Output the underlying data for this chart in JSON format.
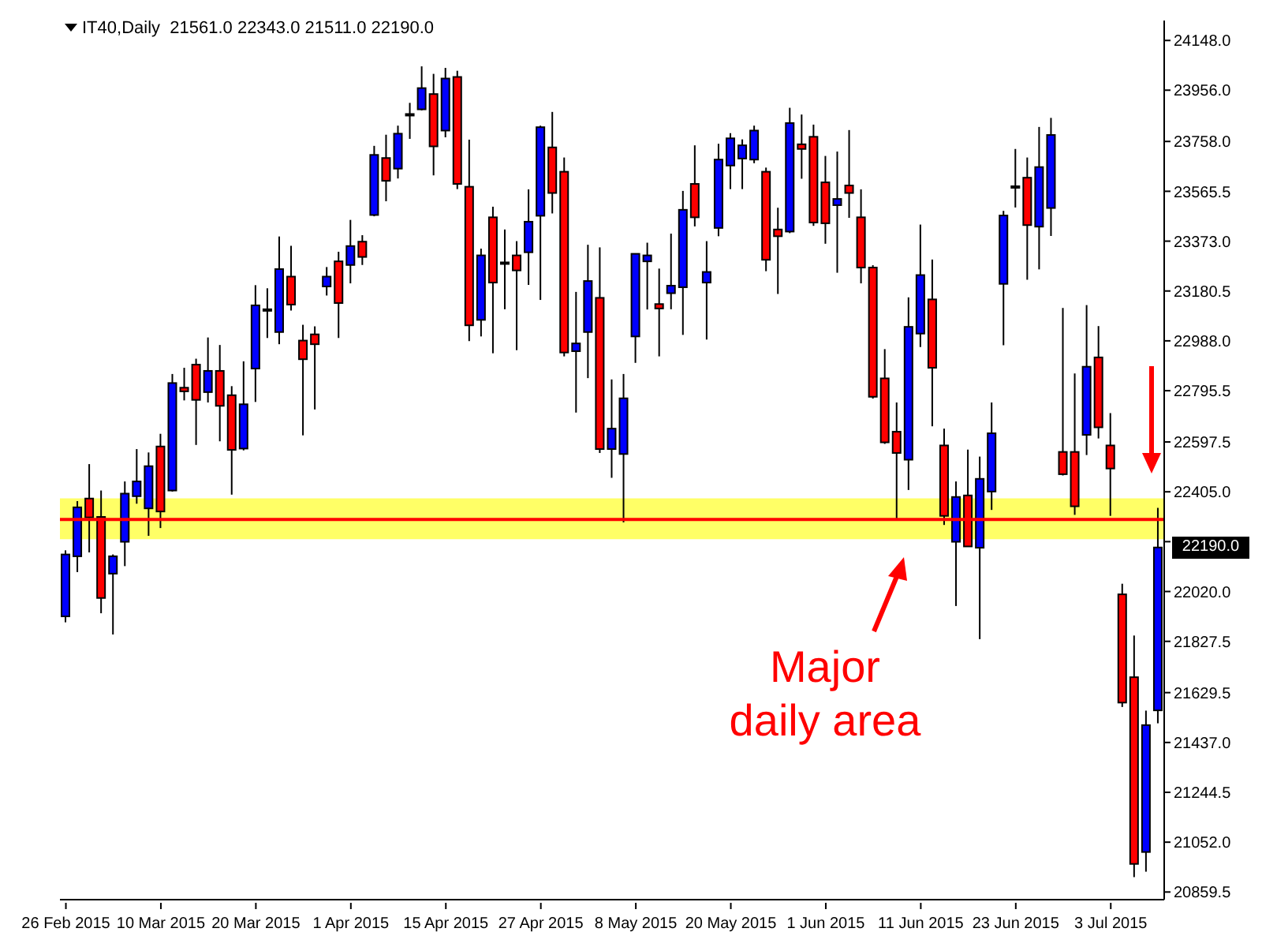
{
  "chart_data": {
    "type": "candlestick",
    "title": "IT40,Daily  21561.0 22343.0 21511.0 22190.0",
    "categories": [
      "26 Feb 2015",
      null,
      null,
      null,
      null,
      null,
      null,
      null,
      "10 Mar 2015",
      null,
      null,
      null,
      null,
      null,
      null,
      null,
      "20 Mar 2015",
      null,
      null,
      null,
      null,
      null,
      null,
      null,
      "1 Apr 2015",
      null,
      null,
      null,
      null,
      null,
      null,
      null,
      "15 Apr 2015",
      null,
      null,
      null,
      null,
      null,
      null,
      null,
      "27 Apr 2015",
      null,
      null,
      null,
      null,
      null,
      null,
      null,
      "8 May 2015",
      null,
      null,
      null,
      null,
      null,
      null,
      null,
      "20 May 2015",
      null,
      null,
      null,
      null,
      null,
      null,
      null,
      "1 Jun 2015",
      null,
      null,
      null,
      null,
      null,
      null,
      null,
      "11 Jun 2015",
      null,
      null,
      null,
      null,
      null,
      null,
      null,
      "23 Jun 2015",
      null,
      null,
      null,
      null,
      null,
      null,
      null,
      "3 Jul 2015",
      null,
      null,
      null,
      null
    ],
    "ohlc": [
      [
        21924,
        22179,
        21901,
        22163
      ],
      [
        22156,
        22369,
        22095,
        22345
      ],
      [
        22379,
        22512,
        22171,
        22306
      ],
      [
        22308,
        22410,
        21936,
        21995
      ],
      [
        22089,
        22163,
        21854,
        22156
      ],
      [
        22212,
        22445,
        22118,
        22398
      ],
      [
        22388,
        22570,
        22359,
        22445
      ],
      [
        22341,
        22557,
        22235,
        22504
      ],
      [
        22580,
        22629,
        22265,
        22329
      ],
      [
        22410,
        22860,
        22406,
        22825
      ],
      [
        22807,
        22884,
        22758,
        22793
      ],
      [
        22896,
        22919,
        22586,
        22760
      ],
      [
        22790,
        23001,
        22750,
        22872
      ],
      [
        22872,
        22972,
        22600,
        22737
      ],
      [
        22778,
        22813,
        22394,
        22567
      ],
      [
        22572,
        22909,
        22565,
        22743
      ],
      [
        22881,
        23203,
        22752,
        23125
      ],
      [
        23110,
        23191,
        22999,
        23110
      ],
      [
        23022,
        23391,
        22975,
        23265
      ],
      [
        23236,
        23355,
        23105,
        23128
      ],
      [
        22989,
        23050,
        22623,
        22917
      ],
      [
        23013,
        23044,
        22723,
        22975
      ],
      [
        23198,
        23273,
        23163,
        23236
      ],
      [
        23295,
        23332,
        22999,
        23134
      ],
      [
        23281,
        23455,
        23210,
        23354
      ],
      [
        23371,
        23396,
        23281,
        23312
      ],
      [
        23474,
        23741,
        23469,
        23706
      ],
      [
        23694,
        23784,
        23527,
        23606
      ],
      [
        23653,
        23819,
        23615,
        23788
      ],
      [
        23864,
        23907,
        23768,
        23864
      ],
      [
        23882,
        24048,
        23878,
        23964
      ],
      [
        23941,
        24019,
        23627,
        23739
      ],
      [
        23800,
        24042,
        23774,
        24001
      ],
      [
        24007,
        24031,
        23574,
        23594
      ],
      [
        23583,
        23765,
        22987,
        23048
      ],
      [
        23069,
        23344,
        23005,
        23318
      ],
      [
        23465,
        23506,
        22940,
        23213
      ],
      [
        23291,
        23418,
        23110,
        23291
      ],
      [
        23318,
        23373,
        22952,
        23260
      ],
      [
        23330,
        23573,
        23204,
        23448
      ],
      [
        23471,
        23819,
        23146,
        23813
      ],
      [
        23735,
        23872,
        23480,
        23559
      ],
      [
        23641,
        23696,
        22928,
        22943
      ],
      [
        22948,
        23177,
        22711,
        22978
      ],
      [
        23022,
        23359,
        22844,
        23219
      ],
      [
        23154,
        23349,
        22555,
        22570
      ],
      [
        22570,
        22839,
        22459,
        22649
      ],
      [
        22551,
        22860,
        22287,
        22766
      ],
      [
        23005,
        23326,
        22903,
        23324
      ],
      [
        23295,
        23367,
        23109,
        23318
      ],
      [
        23130,
        23267,
        22928,
        23113
      ],
      [
        23172,
        23402,
        23110,
        23201
      ],
      [
        23195,
        23567,
        23011,
        23494
      ],
      [
        23594,
        23743,
        23430,
        23465
      ],
      [
        23213,
        23373,
        22993,
        23254
      ],
      [
        23424,
        23749,
        23392,
        23688
      ],
      [
        23665,
        23790,
        23574,
        23770
      ],
      [
        23692,
        23766,
        23574,
        23743
      ],
      [
        23688,
        23819,
        23674,
        23800
      ],
      [
        23641,
        23657,
        23257,
        23301
      ],
      [
        23418,
        23502,
        23169,
        23392
      ],
      [
        23410,
        23888,
        23404,
        23829
      ],
      [
        23747,
        23862,
        23614,
        23729
      ],
      [
        23776,
        23823,
        23432,
        23445
      ],
      [
        23600,
        23702,
        23363,
        23442
      ],
      [
        23512,
        23719,
        23251,
        23536
      ],
      [
        23588,
        23802,
        23463,
        23559
      ],
      [
        23465,
        23573,
        23210,
        23271
      ],
      [
        23271,
        23280,
        22765,
        22772
      ],
      [
        22843,
        22956,
        22590,
        22596
      ],
      [
        22637,
        22750,
        22300,
        22555
      ],
      [
        22529,
        23156,
        22412,
        23042
      ],
      [
        23016,
        23437,
        22964,
        23242
      ],
      [
        23148,
        23302,
        22658,
        22884
      ],
      [
        22584,
        22649,
        22277,
        22312
      ],
      [
        22212,
        22445,
        21964,
        22385
      ],
      [
        22391,
        22568,
        22193,
        22194
      ],
      [
        22189,
        22541,
        21836,
        22455
      ],
      [
        22406,
        22750,
        22335,
        22631
      ],
      [
        23208,
        23490,
        22971,
        23472
      ],
      [
        23585,
        23729,
        23503,
        23585
      ],
      [
        23618,
        23696,
        23224,
        23435
      ],
      [
        23429,
        23814,
        23264,
        23659
      ],
      [
        23501,
        23849,
        23393,
        23783
      ],
      [
        22559,
        23115,
        22468,
        22473
      ],
      [
        22559,
        22862,
        22316,
        22349
      ],
      [
        22625,
        23126,
        22547,
        22888
      ],
      [
        22924,
        23045,
        22611,
        22654
      ],
      [
        22584,
        22709,
        22312,
        22495
      ],
      [
        22009,
        22050,
        21574,
        21591
      ],
      [
        21689,
        21850,
        20917,
        20968
      ],
      [
        21014,
        21560,
        20938,
        21504
      ],
      [
        21561,
        22343,
        21511,
        22190
      ]
    ],
    "colors": [
      "#0000ff",
      "#0000ff",
      "#ff0000",
      "#ff0000",
      "#0000ff",
      "#0000ff",
      "#0000ff",
      "#0000ff",
      "#ff0000",
      "#0000ff",
      "#ff0000",
      "#ff0000",
      "#0000ff",
      "#ff0000",
      "#ff0000",
      "#0000ff",
      "#0000ff",
      "#000000",
      "#0000ff",
      "#ff0000",
      "#ff0000",
      "#ff0000",
      "#0000ff",
      "#ff0000",
      "#0000ff",
      "#ff0000",
      "#0000ff",
      "#ff0000",
      "#0000ff",
      "#000000",
      "#0000ff",
      "#ff0000",
      "#0000ff",
      "#ff0000",
      "#ff0000",
      "#0000ff",
      "#ff0000",
      "#000000",
      "#ff0000",
      "#0000ff",
      "#0000ff",
      "#ff0000",
      "#ff0000",
      "#0000ff",
      "#0000ff",
      "#ff0000",
      "#0000ff",
      "#0000ff",
      "#0000ff",
      "#0000ff",
      "#ff0000",
      "#0000ff",
      "#0000ff",
      "#ff0000",
      "#0000ff",
      "#0000ff",
      "#0000ff",
      "#0000ff",
      "#0000ff",
      "#ff0000",
      "#ff0000",
      "#0000ff",
      "#ff0000",
      "#ff0000",
      "#ff0000",
      "#0000ff",
      "#ff0000",
      "#ff0000",
      "#ff0000",
      "#ff0000",
      "#ff0000",
      "#0000ff",
      "#0000ff",
      "#ff0000",
      "#ff0000",
      "#0000ff",
      "#ff0000",
      "#0000ff",
      "#0000ff",
      "#0000ff",
      "#000000",
      "#ff0000",
      "#0000ff",
      "#0000ff",
      "#ff0000",
      "#ff0000",
      "#0000ff",
      "#ff0000",
      "#ff0000",
      "#ff0000",
      "#ff0000",
      "#0000ff",
      "#0000ff"
    ],
    "ylim": [
      20830,
      24225
    ],
    "yticks": [
      {
        "value": 20859.5,
        "label": "20859.5"
      },
      {
        "value": 21052,
        "label": "21052.0"
      },
      {
        "value": 21244.5,
        "label": "21244.5"
      },
      {
        "value": 21437,
        "label": "21437.0"
      },
      {
        "value": 21629.5,
        "label": "21629.5"
      },
      {
        "value": 21827.5,
        "label": "21827.5"
      },
      {
        "value": 22020,
        "label": "22020.0"
      },
      {
        "value": 22212.5,
        "label": null
      },
      {
        "value": 22405,
        "label": "22405.0"
      },
      {
        "value": 22597.5,
        "label": "22597.5"
      },
      {
        "value": 22795.5,
        "label": "22795.5"
      },
      {
        "value": 22988,
        "label": "22988.0"
      },
      {
        "value": 23180.5,
        "label": "23180.5"
      },
      {
        "value": 23373,
        "label": "23373.0"
      },
      {
        "value": 23565.5,
        "label": "23565.5"
      },
      {
        "value": 23758,
        "label": "23758.0"
      },
      {
        "value": 23956,
        "label": "23956.0"
      },
      {
        "value": 24148,
        "label": "24148.0"
      }
    ],
    "ref_lines": [
      {
        "axis": "y",
        "value": 22298,
        "label": null,
        "color": "#ff0000"
      }
    ],
    "bands": [
      {
        "axis": "y",
        "from": 22222,
        "to": 22380,
        "label": null,
        "color": "#ffff66"
      }
    ],
    "annotations": [
      "Major daily area",
      "22190.0"
    ],
    "grid": false,
    "legend": false
  }
}
